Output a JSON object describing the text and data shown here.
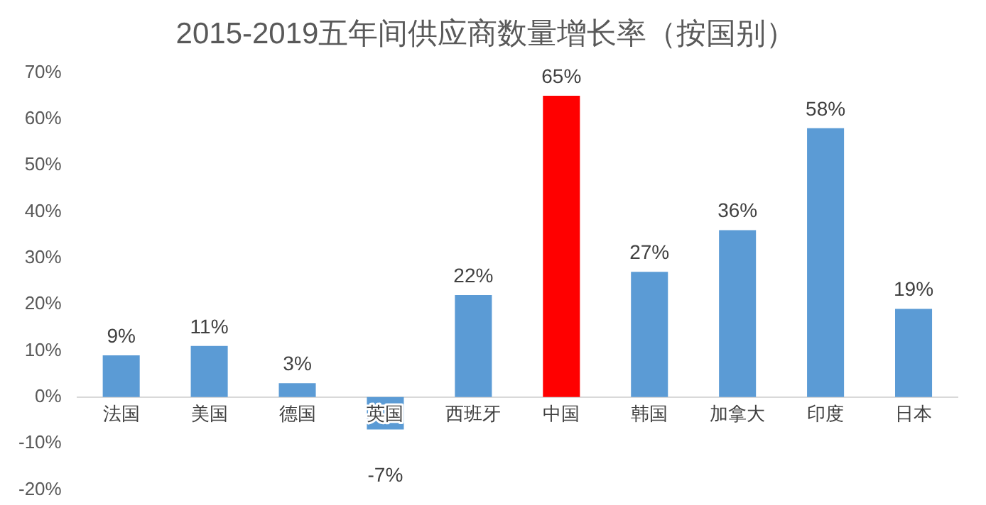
{
  "chart_data": {
    "type": "bar",
    "title": "2015-2019五年间供应商数量增长率（按国别）",
    "categories": [
      "法国",
      "美国",
      "德国",
      "英国",
      "西班牙",
      "中国",
      "韩国",
      "加拿大",
      "印度",
      "日本"
    ],
    "values": [
      9,
      11,
      3,
      -7,
      22,
      65,
      27,
      36,
      58,
      19
    ],
    "colors": [
      "#5b9bd5",
      "#5b9bd5",
      "#5b9bd5",
      "#5b9bd5",
      "#5b9bd5",
      "#ff0000",
      "#5b9bd5",
      "#5b9bd5",
      "#5b9bd5",
      "#5b9bd5"
    ],
    "value_labels": [
      "9%",
      "11%",
      "3%",
      "-7%",
      "22%",
      "65%",
      "27%",
      "36%",
      "58%",
      "19%"
    ],
    "ylim": [
      -20,
      70
    ],
    "yticks": [
      {
        "value": -20,
        "label": "-20%"
      },
      {
        "value": -10,
        "label": "-10%"
      },
      {
        "value": 0,
        "label": "0%"
      },
      {
        "value": 10,
        "label": "10%"
      },
      {
        "value": 20,
        "label": "20%"
      },
      {
        "value": 30,
        "label": "30%"
      },
      {
        "value": 40,
        "label": "40%"
      },
      {
        "value": 50,
        "label": "50%"
      },
      {
        "value": 60,
        "label": "60%"
      },
      {
        "value": 70,
        "label": "70%"
      }
    ],
    "grid": false,
    "legend": false
  }
}
